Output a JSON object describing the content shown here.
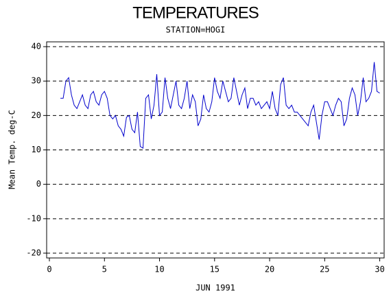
{
  "chart_data": {
    "type": "line",
    "title": "TEMPERATURES",
    "subtitle": "STATION=HOGI",
    "ylabel": "Mean Temp. deg-C",
    "xlabel": "JUN 1991",
    "color": "#0000cc",
    "grid": true,
    "xlim": [
      -0.25,
      30.4
    ],
    "ylim": [
      -21.4,
      41.4
    ],
    "xticks": [
      0,
      5,
      10,
      15,
      20,
      25,
      30
    ],
    "yticks": [
      -20,
      -10,
      0,
      10,
      20,
      30,
      40
    ],
    "x": [
      1.0,
      1.25,
      1.5,
      1.75,
      2.0,
      2.25,
      2.5,
      2.75,
      3.0,
      3.25,
      3.5,
      3.75,
      4.0,
      4.25,
      4.5,
      4.75,
      5.0,
      5.25,
      5.5,
      5.75,
      6.0,
      6.25,
      6.5,
      6.75,
      7.0,
      7.25,
      7.5,
      7.75,
      8.0,
      8.25,
      8.5,
      8.75,
      9.0,
      9.25,
      9.5,
      9.75,
      10.0,
      10.25,
      10.5,
      10.75,
      11.0,
      11.25,
      11.5,
      11.75,
      12.0,
      12.25,
      12.5,
      12.75,
      13.0,
      13.25,
      13.5,
      13.75,
      14.0,
      14.25,
      14.5,
      14.75,
      15.0,
      15.25,
      15.5,
      15.75,
      16.0,
      16.25,
      16.5,
      16.75,
      17.0,
      17.25,
      17.5,
      17.75,
      18.0,
      18.25,
      18.5,
      18.75,
      19.0,
      19.25,
      19.5,
      19.75,
      20.0,
      20.25,
      20.5,
      20.75,
      21.0,
      21.25,
      21.5,
      21.75,
      22.0,
      22.25,
      22.5,
      22.75,
      23.0,
      23.25,
      23.5,
      23.75,
      24.0,
      24.25,
      24.5,
      24.75,
      25.0,
      25.25,
      25.5,
      25.75,
      26.0,
      26.25,
      26.5,
      26.75,
      27.0,
      27.25,
      27.5,
      27.75,
      28.0,
      28.25,
      28.5,
      28.75,
      29.0,
      29.25,
      29.5,
      29.75,
      30.0
    ],
    "values": [
      25,
      25,
      30,
      31,
      26,
      23,
      22,
      24,
      26,
      23,
      22,
      26,
      27,
      24,
      23,
      26,
      27,
      25,
      20,
      19,
      20,
      17,
      16,
      14,
      19.5,
      20,
      16,
      15,
      21,
      11,
      10.5,
      25,
      26,
      19,
      23,
      32,
      20,
      21,
      31,
      25,
      22,
      26,
      30,
      23,
      22,
      25,
      30,
      22,
      26,
      24,
      17,
      19,
      26,
      22,
      21,
      24,
      31,
      27,
      25,
      30,
      27,
      24,
      25,
      31,
      27,
      23,
      26,
      28,
      22,
      25,
      25,
      23,
      24,
      22,
      23,
      24,
      22,
      27,
      22,
      20,
      29,
      31,
      23,
      22,
      23,
      21,
      21,
      20,
      19,
      18,
      17,
      21,
      23,
      18,
      13,
      20,
      24,
      24,
      22,
      20,
      23,
      25,
      24,
      17,
      19,
      25,
      28,
      26,
      20,
      24,
      31,
      24,
      25,
      27,
      35.5,
      27,
      26.5
    ]
  }
}
